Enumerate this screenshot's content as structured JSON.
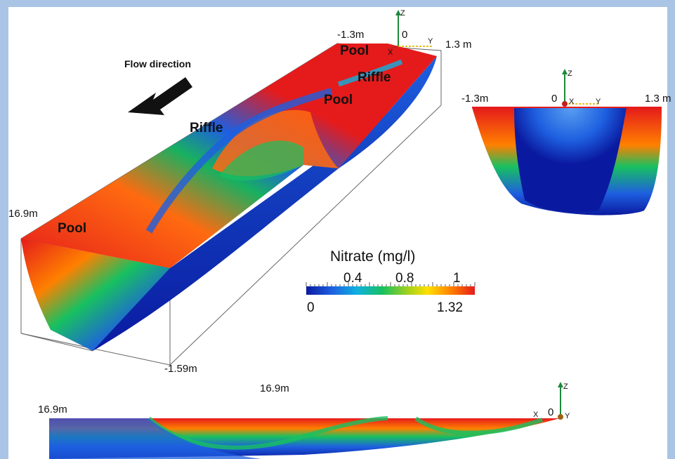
{
  "labels": {
    "flow_direction": "Flow direction",
    "pool": "Pool",
    "riffle": "Riffle",
    "left_width": "-1.3m",
    "right_width": "1.3 m",
    "right_width_b": "1.3 m",
    "zero": "0",
    "length": "16.9m",
    "depth": "-1.59m",
    "axis_x": "X",
    "axis_y": "Y",
    "axis_z": "Z"
  },
  "colorbar": {
    "title": "Nitrate (mg/l)",
    "min": "0",
    "max": "1.32",
    "ticks": [
      "0.4",
      "0.8",
      "1"
    ],
    "colors": [
      "#0a1aa0",
      "#1e5fe0",
      "#0fb0e0",
      "#18c060",
      "#a0d020",
      "#ffe000",
      "#ff8000",
      "#e51b1b"
    ]
  }
}
